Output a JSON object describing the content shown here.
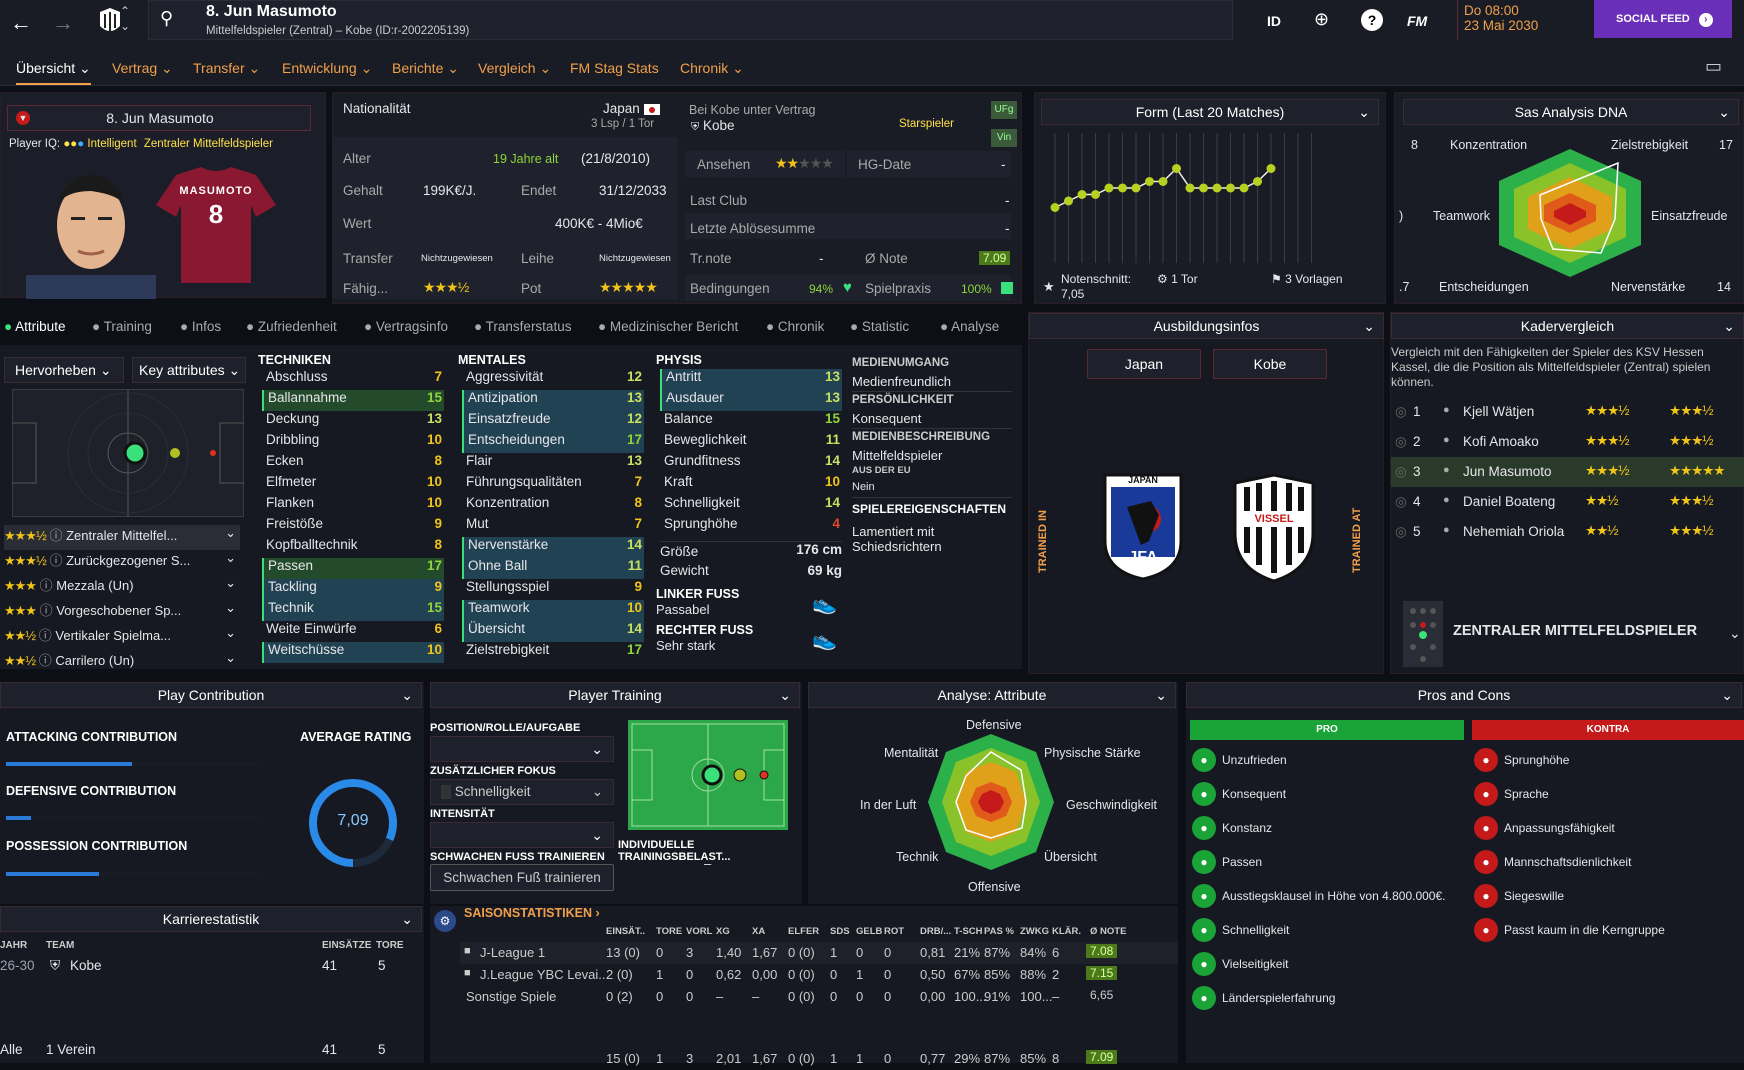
{
  "topbar": {
    "player_title": "8. Jun Masumoto",
    "player_sub": "Mittelfeldspieler (Zentral) – Kobe (ID:r-2002205139)",
    "id_label": "ID",
    "fm_label": "FM",
    "date_line1": "Do 08:00",
    "date_line2": "23 Mai 2030",
    "social_feed": "SOCIAL FEED"
  },
  "nav": [
    "Übersicht",
    "Vertrag",
    "Transfer",
    "Entwicklung",
    "Berichte",
    "Vergleich",
    "FM Stag Stats",
    "Chronik"
  ],
  "profile": {
    "name": "8. Jun Masumoto",
    "iq_label": "Player IQ:",
    "iq_value": "Intelligent",
    "iq_role": "Zentraler Mittelfeldspieler",
    "shirt_name": "MASUMOTO",
    "shirt_number": "8"
  },
  "contract": {
    "nationality_label": "Nationalität",
    "nationality": "Japan",
    "caps": "3 Lsp / 1 Tor",
    "club_label": "Bei Kobe unter Vertrag",
    "club": "Kobe",
    "squad_status": "Starspieler",
    "tag1": "UFg",
    "tag2": "Vin",
    "age_label": "Alter",
    "age_value": "19 Jahre alt",
    "age_dob": "(21/8/2010)",
    "salary_label": "Gehalt",
    "salary": "199K€/J.",
    "ends_label": "Endet",
    "ends": "31/12/2033",
    "value_label": "Wert",
    "value": "400K€ - 4Mio€",
    "transfer_label": "Transfer",
    "transfer_value": "Nichtzugewiesen",
    "loan_label": "Leihe",
    "loan_value": "Nichtzugewiesen",
    "ability_label": "Fähig...",
    "pot_label": "Pot",
    "reputation_label": "Ansehen",
    "hg_label": "HG-Date",
    "hg_value": "-",
    "last_club_label": "Last Club",
    "last_club_value": "-",
    "last_fee_label": "Letzte Ablösesumme",
    "last_fee_value": "-",
    "trnote_label": "Tr.note",
    "trnote_value": "-",
    "avg_label": "Ø Note",
    "avg_value": "7.09",
    "conditions_label": "Bedingungen",
    "conditions_value": "94%",
    "playtime_label": "Spielpraxis",
    "playtime_value": "100%"
  },
  "form": {
    "title": "Form (Last 20 Matches)",
    "avg_label": "Notenschnitt:",
    "avg_value": "7,05",
    "goals": "1 Tor",
    "assists": "3 Vorlagen",
    "points": [
      6.7,
      6.8,
      6.9,
      6.9,
      7.0,
      7.0,
      7.0,
      7.1,
      7.1,
      7.3,
      7.0,
      7.0,
      7.0,
      7.0,
      7.0,
      7.1,
      7.3
    ]
  },
  "dna": {
    "title": "Sas Analysis DNA",
    "labels": [
      "Konzentration",
      "Zielstrebigkeit",
      "Teamwork",
      "Einsatzfreude",
      "Entscheidungen",
      "Nervenstärke"
    ],
    "values": [
      "8",
      "17",
      ")",
      "",
      ".7",
      "14"
    ]
  },
  "tabs": [
    "Attribute",
    "Training",
    "Infos",
    "Zufriedenheit",
    "Vertragsinfo",
    "Transferstatus",
    "Medizinischer Bericht",
    "Chronik",
    "Statistic",
    "Analyse"
  ],
  "attr_controls": {
    "highlight": "Hervorheben",
    "key": "Key attributes"
  },
  "roles": [
    {
      "stars": "★★★½",
      "name": "Zentraler Mittelfel..."
    },
    {
      "stars": "★★★½",
      "name": "Zurückgezogener S..."
    },
    {
      "stars": "★★★",
      "name": "Mezzala (Un)"
    },
    {
      "stars": "★★★",
      "name": "Vorgeschobener Sp..."
    },
    {
      "stars": "★★½",
      "name": "Vertikaler Spielma..."
    },
    {
      "stars": "★★½",
      "name": "Carrilero (Un)"
    }
  ],
  "technical": {
    "title": "TECHNIKEN",
    "items": [
      [
        "Abschluss",
        "7"
      ],
      [
        "Ballannahme",
        "15"
      ],
      [
        "Deckung",
        "13"
      ],
      [
        "Dribbling",
        "10"
      ],
      [
        "Ecken",
        "8"
      ],
      [
        "Elfmeter",
        "10"
      ],
      [
        "Flanken",
        "10"
      ],
      [
        "Freistöße",
        "9"
      ],
      [
        "Kopfballtechnik",
        "8"
      ],
      [
        "Passen",
        "17"
      ],
      [
        "Tackling",
        "9"
      ],
      [
        "Technik",
        "15"
      ],
      [
        "Weite Einwürfe",
        "6"
      ],
      [
        "Weitschüsse",
        "10"
      ]
    ]
  },
  "mental": {
    "title": "MENTALES",
    "items": [
      [
        "Aggressivität",
        "12"
      ],
      [
        "Antizipation",
        "13"
      ],
      [
        "Einsatzfreude",
        "12"
      ],
      [
        "Entscheidungen",
        "17"
      ],
      [
        "Flair",
        "13"
      ],
      [
        "Führungsqualitäten",
        "7"
      ],
      [
        "Konzentration",
        "8"
      ],
      [
        "Mut",
        "7"
      ],
      [
        "Nervenstärke",
        "14"
      ],
      [
        "Ohne Ball",
        "11"
      ],
      [
        "Stellungsspiel",
        "9"
      ],
      [
        "Teamwork",
        "10"
      ],
      [
        "Übersicht",
        "14"
      ],
      [
        "Zielstrebigkeit",
        "17"
      ]
    ]
  },
  "physical": {
    "title": "PHYSIS",
    "items": [
      [
        "Antritt",
        "13"
      ],
      [
        "Ausdauer",
        "13"
      ],
      [
        "Balance",
        "15"
      ],
      [
        "Beweglichkeit",
        "11"
      ],
      [
        "Grundfitness",
        "14"
      ],
      [
        "Kraft",
        "10"
      ],
      [
        "Schnelligkeit",
        "14"
      ],
      [
        "Sprunghöhe",
        "4"
      ]
    ],
    "height_label": "Größe",
    "height": "176 cm",
    "weight_label": "Gewicht",
    "weight": "69 kg",
    "left_foot_label": "LINKER FUSS",
    "left_foot": "Passabel",
    "right_foot_label": "RECHTER FUSS",
    "right_foot": "Sehr stark"
  },
  "media": {
    "h1": "MEDIENUMGANG",
    "v1": "Medienfreundlich",
    "h2": "PERSÖNLICHKEIT",
    "v2": "Konsequent",
    "h3": "MEDIENBESCHREIBUNG",
    "v3": "Mittelfeldspieler",
    "h4": "AUS DER EU",
    "v4": "Nein",
    "h5": "SPIELEREIGENSCHAFTEN",
    "v5": "Lamentiert mit Schiedsrichtern"
  },
  "training_info": {
    "title": "Ausbildungsinfos",
    "btn1": "Japan",
    "btn2": "Kobe",
    "left_label": "TRAINED IN",
    "right_label": "TRAINED AT",
    "jfa_top": "JAPAN",
    "jfa_bottom": "JFA",
    "vissel": "VISSEL"
  },
  "squad_compare": {
    "title": "Kadervergleich",
    "text": "Vergleich mit den Fähigkeiten der Spieler des KSV Hessen Kassel, die die Position als Mittelfeldspieler (Zentral) spielen können.",
    "rows": [
      {
        "rank": "1",
        "name": "Kjell Wätjen",
        "a": "★★★½",
        "p": "★★★½"
      },
      {
        "rank": "2",
        "name": "Kofi Amoako",
        "a": "★★★½",
        "p": "★★★½"
      },
      {
        "rank": "3",
        "name": "Jun Masumoto",
        "a": "★★★½",
        "p": "★★★★★"
      },
      {
        "rank": "4",
        "name": "Daniel Boateng",
        "a": "★★½",
        "p": "★★★½"
      },
      {
        "rank": "5",
        "name": "Nehemiah Oriola",
        "a": "★★½",
        "p": "★★★½"
      }
    ],
    "position": "ZENTRALER MITTELFELDSPIELER"
  },
  "play_contribution": {
    "title": "Play Contribution",
    "attacking": "ATTACKING CONTRIBUTION",
    "defensive": "DEFENSIVE CONTRIBUTION",
    "possession": "POSSESSION CONTRIBUTION",
    "avg_label": "AVERAGE RATING",
    "avg_value": "7,09",
    "attacking_pct": 0.5,
    "defensive_pct": 0.1,
    "possession_pct": 0.37
  },
  "player_training": {
    "title": "Player Training",
    "pos_label": "POSITION/ROLLE/AUFGABE",
    "focus_label": "ZUSÄTZLICHER FOKUS",
    "focus_value": "Schnelligkeit",
    "intensity_label": "INTENSITÄT",
    "weak_label": "SCHWACHEN FUSS TRAINIEREN",
    "weak_button": "Schwachen Fuß trainieren",
    "load_label": "INDIVIDUELLE TRAININGSBELAST...",
    "load_value": "–"
  },
  "analysis": {
    "title": "Analyse: Attribute",
    "labels": [
      "Defensive",
      "Physische Stärke",
      "Geschwindigkeit",
      "Übersicht",
      "Offensive",
      "Technik",
      "In der Luft",
      "Mentalität"
    ]
  },
  "pros_cons": {
    "title": "Pros and Cons",
    "pro_label": "PRO",
    "con_label": "KONTRA",
    "pros": [
      "Unzufrieden",
      "Konsequent",
      "Konstanz",
      "Passen",
      "Ausstiegsklausel in Höhe von 4.800.000€.",
      "Schnelligkeit",
      "Vielseitigkeit",
      "Länderspielerfahrung"
    ],
    "cons": [
      "Sprunghöhe",
      "Sprache",
      "Anpassungsfähigkeit",
      "Mannschaftsdienlichkeit",
      "Siegeswille",
      "Passt kaum in die Kerngruppe"
    ]
  },
  "career": {
    "title": "Karrierestatistik",
    "headers": [
      "JAHR",
      "TEAM",
      "EINSÄTZE",
      "TORE"
    ],
    "rows": [
      [
        "26-30",
        "Kobe",
        "41",
        "5"
      ]
    ],
    "total": [
      "Alle",
      "1 Verein",
      "41",
      "5"
    ]
  },
  "season": {
    "title": "SAISONSTATISTIKEN",
    "headers": [
      "EINSÄT..",
      "TORE",
      "VORL",
      "XG",
      "XA",
      "ELFER",
      "SDS",
      "GELB",
      "ROT",
      "DRB/...",
      "T-SCH",
      "PAS %",
      "ZWKG",
      "KLÄR.",
      "Ø NOTE"
    ],
    "rows": [
      {
        "comp": "J-League 1",
        "vals": [
          "13 (0)",
          "0",
          "3",
          "1,40",
          "1,67",
          "0 (0)",
          "1",
          "0",
          "0",
          "0,81",
          "21%",
          "87%",
          "84%",
          "6"
        ],
        "note": "7.08"
      },
      {
        "comp": "J.League YBC Levai...",
        "vals": [
          "2 (0)",
          "1",
          "0",
          "0,62",
          "0,00",
          "0 (0)",
          "0",
          "1",
          "0",
          "0,50",
          "67%",
          "85%",
          "88%",
          "2"
        ],
        "note": "7.15"
      },
      {
        "comp": "Sonstige Spiele",
        "vals": [
          "0 (2)",
          "0",
          "0",
          "–",
          "–",
          "0 (0)",
          "0",
          "0",
          "0",
          "0,00",
          "100...",
          "91%",
          "100...",
          "–"
        ],
        "note": "6,65"
      }
    ],
    "total": {
      "vals": [
        "15 (0)",
        "1",
        "3",
        "2,01",
        "1,67",
        "0 (0)",
        "1",
        "1",
        "0",
        "0,77",
        "29%",
        "87%",
        "85%",
        "8"
      ],
      "note": "7.09"
    }
  },
  "colors": {
    "accent": "#f0a04b",
    "highlight_blue": "#214252",
    "highlight_green": "#244a2c",
    "pro": "#1aa336",
    "con": "#c41a1a",
    "social": "#6a2fb8"
  }
}
